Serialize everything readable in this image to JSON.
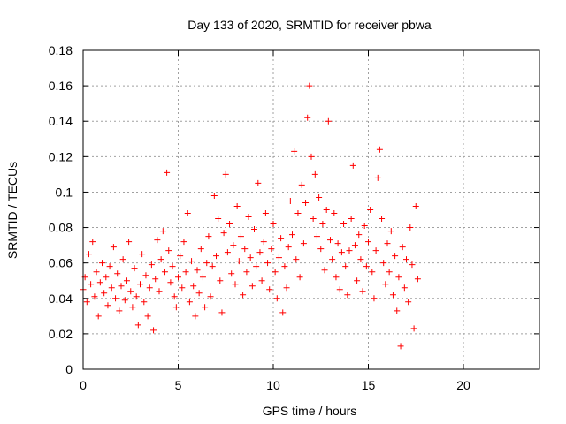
{
  "chart_data": {
    "type": "scatter",
    "title": "Day 133 of 2020, SRMTID for receiver pbwa",
    "xlabel": "GPS time / hours",
    "ylabel": "SRMTID / TECUs",
    "xlim": [
      0,
      24
    ],
    "ylim": [
      0,
      0.18
    ],
    "xticks": [
      "0",
      "5",
      "10",
      "15",
      "20"
    ],
    "xtick_values": [
      0,
      5,
      10,
      15,
      20
    ],
    "yticks": [
      "0",
      "0.02",
      "0.04",
      "0.06",
      "0.08",
      "0.1",
      "0.12",
      "0.14",
      "0.16",
      "0.18"
    ],
    "ytick_values": [
      0,
      0.02,
      0.04,
      0.06,
      0.08,
      0.1,
      0.12,
      0.14,
      0.16,
      0.18
    ],
    "grid": true,
    "marker": "+",
    "color": "#ff0000",
    "series": [
      {
        "values": [
          [
            0.0,
            0.045
          ],
          [
            0.1,
            0.052
          ],
          [
            0.2,
            0.038
          ],
          [
            0.3,
            0.065
          ],
          [
            0.4,
            0.048
          ],
          [
            0.5,
            0.072
          ],
          [
            0.6,
            0.041
          ],
          [
            0.7,
            0.055
          ],
          [
            0.8,
            0.03
          ],
          [
            0.9,
            0.049
          ],
          [
            1.0,
            0.06
          ],
          [
            1.1,
            0.043
          ],
          [
            1.2,
            0.052
          ],
          [
            1.3,
            0.036
          ],
          [
            1.4,
            0.058
          ],
          [
            1.5,
            0.046
          ],
          [
            1.6,
            0.069
          ],
          [
            1.7,
            0.04
          ],
          [
            1.8,
            0.054
          ],
          [
            1.9,
            0.033
          ],
          [
            2.0,
            0.047
          ],
          [
            2.1,
            0.062
          ],
          [
            2.2,
            0.039
          ],
          [
            2.3,
            0.05
          ],
          [
            2.4,
            0.072
          ],
          [
            2.5,
            0.044
          ],
          [
            2.6,
            0.035
          ],
          [
            2.7,
            0.057
          ],
          [
            2.8,
            0.041
          ],
          [
            2.9,
            0.025
          ],
          [
            3.0,
            0.048
          ],
          [
            3.1,
            0.065
          ],
          [
            3.2,
            0.038
          ],
          [
            3.3,
            0.053
          ],
          [
            3.4,
            0.03
          ],
          [
            3.5,
            0.046
          ],
          [
            3.6,
            0.059
          ],
          [
            3.7,
            0.022
          ],
          [
            3.8,
            0.051
          ],
          [
            3.9,
            0.073
          ],
          [
            4.0,
            0.044
          ],
          [
            4.1,
            0.062
          ],
          [
            4.2,
            0.078
          ],
          [
            4.3,
            0.055
          ],
          [
            4.4,
            0.111
          ],
          [
            4.5,
            0.067
          ],
          [
            4.6,
            0.049
          ],
          [
            4.7,
            0.058
          ],
          [
            4.8,
            0.041
          ],
          [
            4.9,
            0.035
          ],
          [
            5.0,
            0.052
          ],
          [
            5.1,
            0.064
          ],
          [
            5.2,
            0.046
          ],
          [
            5.3,
            0.072
          ],
          [
            5.4,
            0.055
          ],
          [
            5.5,
            0.088
          ],
          [
            5.6,
            0.038
          ],
          [
            5.7,
            0.061
          ],
          [
            5.8,
            0.047
          ],
          [
            5.9,
            0.03
          ],
          [
            6.0,
            0.056
          ],
          [
            6.1,
            0.043
          ],
          [
            6.2,
            0.068
          ],
          [
            6.3,
            0.052
          ],
          [
            6.4,
            0.035
          ],
          [
            6.5,
            0.06
          ],
          [
            6.6,
            0.075
          ],
          [
            6.7,
            0.041
          ],
          [
            6.8,
            0.058
          ],
          [
            6.9,
            0.098
          ],
          [
            7.0,
            0.064
          ],
          [
            7.1,
            0.085
          ],
          [
            7.2,
            0.05
          ],
          [
            7.3,
            0.032
          ],
          [
            7.4,
            0.077
          ],
          [
            7.5,
            0.11
          ],
          [
            7.6,
            0.066
          ],
          [
            7.7,
            0.082
          ],
          [
            7.8,
            0.054
          ],
          [
            7.9,
            0.07
          ],
          [
            8.0,
            0.048
          ],
          [
            8.1,
            0.092
          ],
          [
            8.2,
            0.061
          ],
          [
            8.3,
            0.075
          ],
          [
            8.4,
            0.042
          ],
          [
            8.5,
            0.068
          ],
          [
            8.6,
            0.055
          ],
          [
            8.7,
            0.086
          ],
          [
            8.8,
            0.063
          ],
          [
            8.9,
            0.047
          ],
          [
            9.0,
            0.079
          ],
          [
            9.1,
            0.058
          ],
          [
            9.2,
            0.105
          ],
          [
            9.3,
            0.066
          ],
          [
            9.4,
            0.05
          ],
          [
            9.5,
            0.072
          ],
          [
            9.6,
            0.088
          ],
          [
            9.7,
            0.06
          ],
          [
            9.8,
            0.045
          ],
          [
            9.9,
            0.068
          ],
          [
            10.0,
            0.082
          ],
          [
            10.1,
            0.055
          ],
          [
            10.2,
            0.04
          ],
          [
            10.3,
            0.063
          ],
          [
            10.4,
            0.074
          ],
          [
            10.5,
            0.032
          ],
          [
            10.6,
            0.058
          ],
          [
            10.7,
            0.046
          ],
          [
            10.8,
            0.069
          ],
          [
            10.9,
            0.095
          ],
          [
            11.0,
            0.076
          ],
          [
            11.1,
            0.123
          ],
          [
            11.2,
            0.062
          ],
          [
            11.3,
            0.088
          ],
          [
            11.4,
            0.052
          ],
          [
            11.5,
            0.104
          ],
          [
            11.6,
            0.071
          ],
          [
            11.7,
            0.094
          ],
          [
            11.8,
            0.142
          ],
          [
            11.9,
            0.16
          ],
          [
            12.0,
            0.12
          ],
          [
            12.1,
            0.085
          ],
          [
            12.2,
            0.11
          ],
          [
            12.3,
            0.075
          ],
          [
            12.4,
            0.097
          ],
          [
            12.5,
            0.068
          ],
          [
            12.6,
            0.082
          ],
          [
            12.7,
            0.056
          ],
          [
            12.8,
            0.09
          ],
          [
            12.9,
            0.14
          ],
          [
            13.0,
            0.073
          ],
          [
            13.1,
            0.062
          ],
          [
            13.2,
            0.088
          ],
          [
            13.3,
            0.052
          ],
          [
            13.4,
            0.071
          ],
          [
            13.5,
            0.045
          ],
          [
            13.6,
            0.066
          ],
          [
            13.7,
            0.082
          ],
          [
            13.8,
            0.058
          ],
          [
            13.9,
            0.042
          ],
          [
            14.0,
            0.067
          ],
          [
            14.1,
            0.085
          ],
          [
            14.2,
            0.115
          ],
          [
            14.3,
            0.07
          ],
          [
            14.4,
            0.05
          ],
          [
            14.5,
            0.076
          ],
          [
            14.6,
            0.062
          ],
          [
            14.7,
            0.044
          ],
          [
            14.8,
            0.081
          ],
          [
            14.9,
            0.058
          ],
          [
            15.0,
            0.072
          ],
          [
            15.1,
            0.09
          ],
          [
            15.2,
            0.055
          ],
          [
            15.3,
            0.04
          ],
          [
            15.4,
            0.067
          ],
          [
            15.5,
            0.108
          ],
          [
            15.6,
            0.124
          ],
          [
            15.7,
            0.085
          ],
          [
            15.8,
            0.06
          ],
          [
            15.9,
            0.048
          ],
          [
            16.0,
            0.071
          ],
          [
            16.1,
            0.055
          ],
          [
            16.2,
            0.078
          ],
          [
            16.3,
            0.042
          ],
          [
            16.4,
            0.064
          ],
          [
            16.5,
            0.033
          ],
          [
            16.6,
            0.052
          ],
          [
            16.7,
            0.013
          ],
          [
            16.8,
            0.069
          ],
          [
            16.9,
            0.046
          ],
          [
            17.0,
            0.062
          ],
          [
            17.1,
            0.038
          ],
          [
            17.2,
            0.08
          ],
          [
            17.3,
            0.059
          ],
          [
            17.4,
            0.023
          ],
          [
            17.5,
            0.092
          ],
          [
            17.6,
            0.051
          ]
        ]
      }
    ]
  }
}
